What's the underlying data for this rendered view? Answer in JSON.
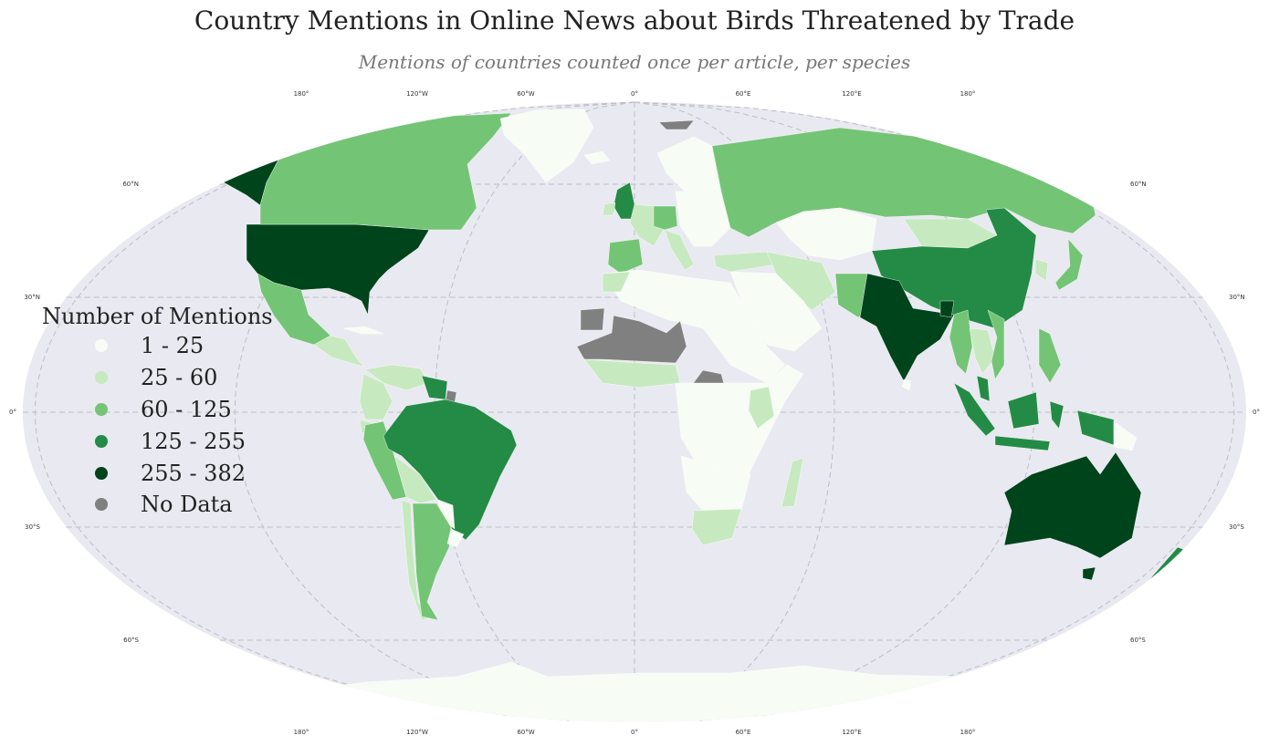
{
  "title": "Country Mentions in Online News about Birds Threatened by Trade",
  "subtitle": "Mentions of countries counted once per article, per species",
  "colors": {
    "ocean": "#e9e9f1",
    "c1": "#f7fcf5",
    "c2": "#c7e9c0",
    "c3": "#74c476",
    "c4": "#238b45",
    "c5": "#00441b",
    "nodata": "#808080"
  },
  "legend": {
    "title": "Number of Mentions",
    "items": [
      {
        "label": "1 - 25",
        "color": "#f7fcf5"
      },
      {
        "label": "25 - 60",
        "color": "#c7e9c0"
      },
      {
        "label": "60 - 125",
        "color": "#74c476"
      },
      {
        "label": "125 - 255",
        "color": "#238b45"
      },
      {
        "label": "255 - 382",
        "color": "#00441b"
      },
      {
        "label": "No Data",
        "color": "#808080"
      }
    ]
  },
  "lon_labels": [
    "180°",
    "120°W",
    "60°W",
    "0°",
    "60°E",
    "120°E",
    "180°"
  ],
  "lat_labels": [
    "60°N",
    "30°N",
    "0°",
    "30°S",
    "60°S"
  ],
  "regions": [
    {
      "name": "United States",
      "class": "c5"
    },
    {
      "name": "Alaska",
      "class": "c5"
    },
    {
      "name": "Canada",
      "class": "c3"
    },
    {
      "name": "Greenland",
      "class": "c1"
    },
    {
      "name": "Mexico",
      "class": "c3"
    },
    {
      "name": "Central America",
      "class": "c2"
    },
    {
      "name": "Cuba",
      "class": "c1"
    },
    {
      "name": "Venezuela",
      "class": "c2"
    },
    {
      "name": "Colombia",
      "class": "c2"
    },
    {
      "name": "Ecuador",
      "class": "c2"
    },
    {
      "name": "Guyana",
      "class": "c4"
    },
    {
      "name": "French Guiana",
      "class": "nodata"
    },
    {
      "name": "Peru",
      "class": "c3"
    },
    {
      "name": "Brazil",
      "class": "c4"
    },
    {
      "name": "Bolivia",
      "class": "c2"
    },
    {
      "name": "Paraguay",
      "class": "c1"
    },
    {
      "name": "Chile",
      "class": "c2"
    },
    {
      "name": "Argentina",
      "class": "c3"
    },
    {
      "name": "Uruguay",
      "class": "c1"
    },
    {
      "name": "Iceland",
      "class": "c1"
    },
    {
      "name": "United Kingdom",
      "class": "c4"
    },
    {
      "name": "Ireland",
      "class": "c2"
    },
    {
      "name": "Scandinavia",
      "class": "c1"
    },
    {
      "name": "Western Europe",
      "class": "c2"
    },
    {
      "name": "Germany",
      "class": "c3"
    },
    {
      "name": "Spain",
      "class": "c3"
    },
    {
      "name": "Italy",
      "class": "c2"
    },
    {
      "name": "Eastern Europe",
      "class": "c1"
    },
    {
      "name": "Russia",
      "class": "c3"
    },
    {
      "name": "Kazakhstan",
      "class": "c1"
    },
    {
      "name": "Mongolia",
      "class": "c2"
    },
    {
      "name": "China",
      "class": "c4"
    },
    {
      "name": "Korea",
      "class": "c2"
    },
    {
      "name": "Japan",
      "class": "c3"
    },
    {
      "name": "Turkey",
      "class": "c2"
    },
    {
      "name": "Middle East",
      "class": "c2"
    },
    {
      "name": "Arabian Peninsula",
      "class": "c1"
    },
    {
      "name": "Pakistan",
      "class": "c3"
    },
    {
      "name": "India",
      "class": "c5"
    },
    {
      "name": "Bangladesh",
      "class": "c5"
    },
    {
      "name": "Sri Lanka",
      "class": "c1"
    },
    {
      "name": "Myanmar",
      "class": "c3"
    },
    {
      "name": "Thailand",
      "class": "c2"
    },
    {
      "name": "Vietnam",
      "class": "c3"
    },
    {
      "name": "Philippines",
      "class": "c3"
    },
    {
      "name": "Malaysia",
      "class": "c4"
    },
    {
      "name": "Sumatra",
      "class": "c4"
    },
    {
      "name": "Java",
      "class": "c4"
    },
    {
      "name": "Borneo",
      "class": "c4"
    },
    {
      "name": "Sulawesi",
      "class": "c4"
    },
    {
      "name": "New Guinea",
      "class": "c4"
    },
    {
      "name": "Papua New Guinea",
      "class": "c1"
    },
    {
      "name": "Australia",
      "class": "c5"
    },
    {
      "name": "Tasmania",
      "class": "c5"
    },
    {
      "name": "New Zealand",
      "class": "c4"
    },
    {
      "name": "North Africa",
      "class": "c1"
    },
    {
      "name": "Morocco",
      "class": "c2"
    },
    {
      "name": "Western Sahara",
      "class": "nodata"
    },
    {
      "name": "Sahel",
      "class": "nodata"
    },
    {
      "name": "West Africa",
      "class": "c2"
    },
    {
      "name": "Central Africa",
      "class": "nodata"
    },
    {
      "name": "East Africa",
      "class": "c1"
    },
    {
      "name": "Kenya",
      "class": "c2"
    },
    {
      "name": "Southern Africa",
      "class": "c1"
    },
    {
      "name": "South Africa",
      "class": "c2"
    },
    {
      "name": "Madagascar",
      "class": "c2"
    },
    {
      "name": "Svalbard",
      "class": "nodata"
    },
    {
      "name": "Antarctica",
      "class": "c1"
    }
  ]
}
